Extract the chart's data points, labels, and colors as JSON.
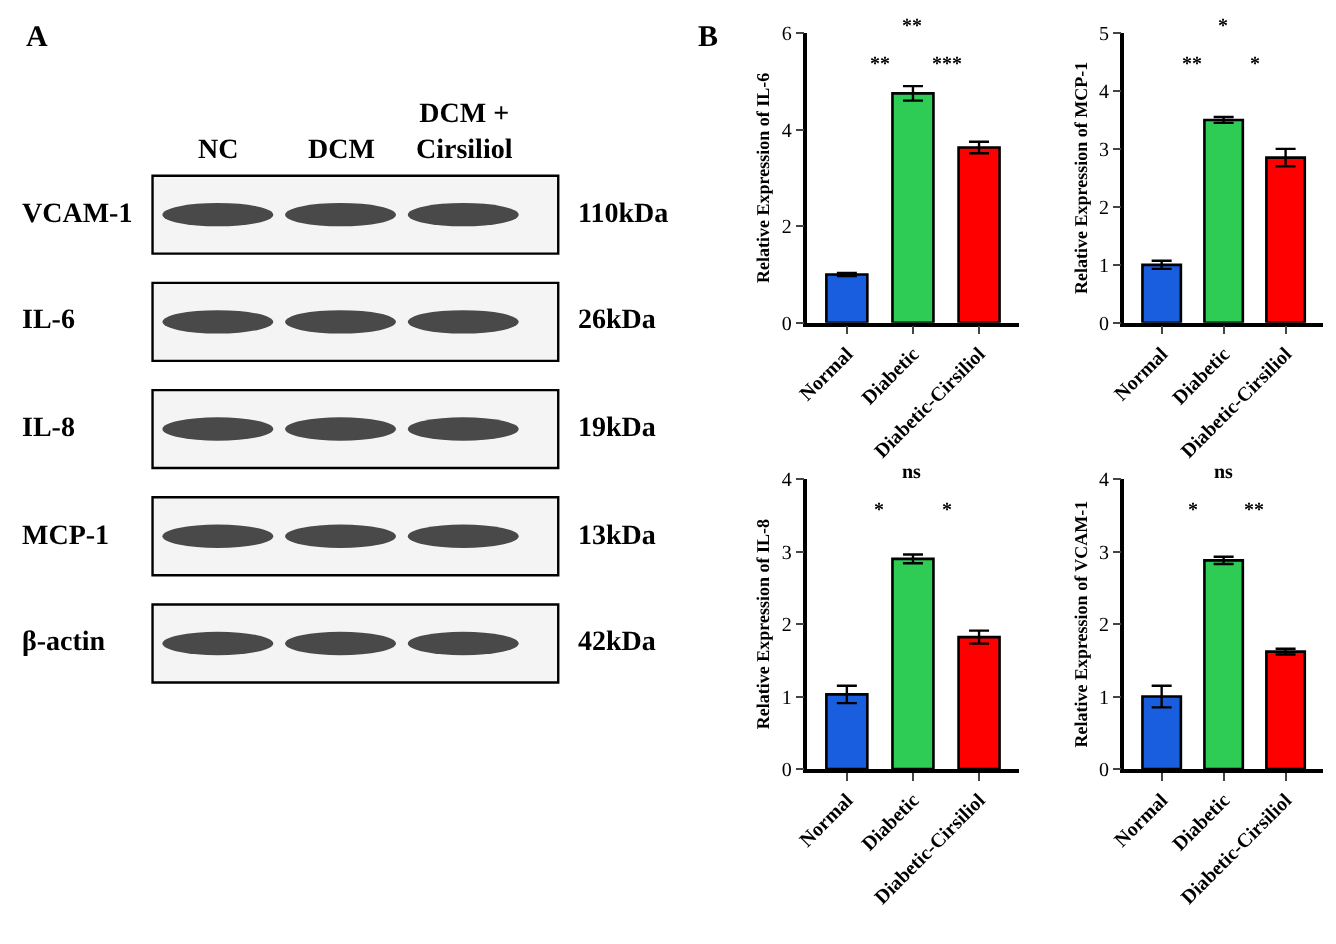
{
  "chart_data": [
    {
      "type": "other",
      "title": "A",
      "annotations": [
        "NC",
        "DCM",
        "DCM +\nCirsiliol",
        "VCAM-1",
        "110kDa",
        "IL-6",
        "26kDa",
        "IL-8",
        "19kDa",
        "MCP-1",
        "13kDa",
        "β-actin",
        "42kDa"
      ]
    },
    {
      "type": "bar",
      "title": "B",
      "ylabel": "Relative Expression of IL-6",
      "categories": [
        "Normal",
        "Diabetic",
        "Diabetic-Cirsiliol"
      ],
      "values": [
        1.0,
        4.75,
        3.63
      ],
      "errors": [
        0.03,
        0.15,
        0.12
      ],
      "colors": [
        "#1a5ee0",
        "#2ecc55",
        "#ff0000"
      ],
      "ylim": [
        0,
        6
      ],
      "yticks": [
        0,
        2,
        4,
        6
      ],
      "annotations": [
        "**",
        "***",
        "**"
      ]
    },
    {
      "type": "bar",
      "ylabel": "Relative Expression of MCP-1",
      "categories": [
        "Normal",
        "Diabetic",
        "Diabetic-Cirsiliol"
      ],
      "values": [
        1.0,
        3.5,
        2.85
      ],
      "errors": [
        0.07,
        0.05,
        0.15
      ],
      "colors": [
        "#1a5ee0",
        "#2ecc55",
        "#ff0000"
      ],
      "ylim": [
        0,
        5
      ],
      "yticks": [
        0,
        1,
        2,
        3,
        4,
        5
      ],
      "annotations": [
        "**",
        "*",
        "*"
      ]
    },
    {
      "type": "bar",
      "ylabel": "Relative Expression of IL-8",
      "categories": [
        "Normal",
        "Diabetic",
        "Diabetic-Cirsiliol"
      ],
      "values": [
        1.03,
        2.9,
        1.82
      ],
      "errors": [
        0.12,
        0.06,
        0.09
      ],
      "colors": [
        "#1a5ee0",
        "#2ecc55",
        "#ff0000"
      ],
      "ylim": [
        0,
        4
      ],
      "yticks": [
        0,
        1,
        2,
        3,
        4
      ],
      "annotations": [
        "*",
        "*",
        "ns"
      ]
    },
    {
      "type": "bar",
      "ylabel": "Relative Expression of VCAM-1",
      "categories": [
        "Normal",
        "Diabetic",
        "Diabetic-Cirsiliol"
      ],
      "values": [
        1.0,
        2.88,
        1.62
      ],
      "errors": [
        0.15,
        0.05,
        0.04
      ],
      "colors": [
        "#1a5ee0",
        "#2ecc55",
        "#ff0000"
      ],
      "ylim": [
        0,
        4
      ],
      "yticks": [
        0,
        1,
        2,
        3,
        4
      ],
      "annotations": [
        "*",
        "**",
        "ns"
      ]
    }
  ]
}
